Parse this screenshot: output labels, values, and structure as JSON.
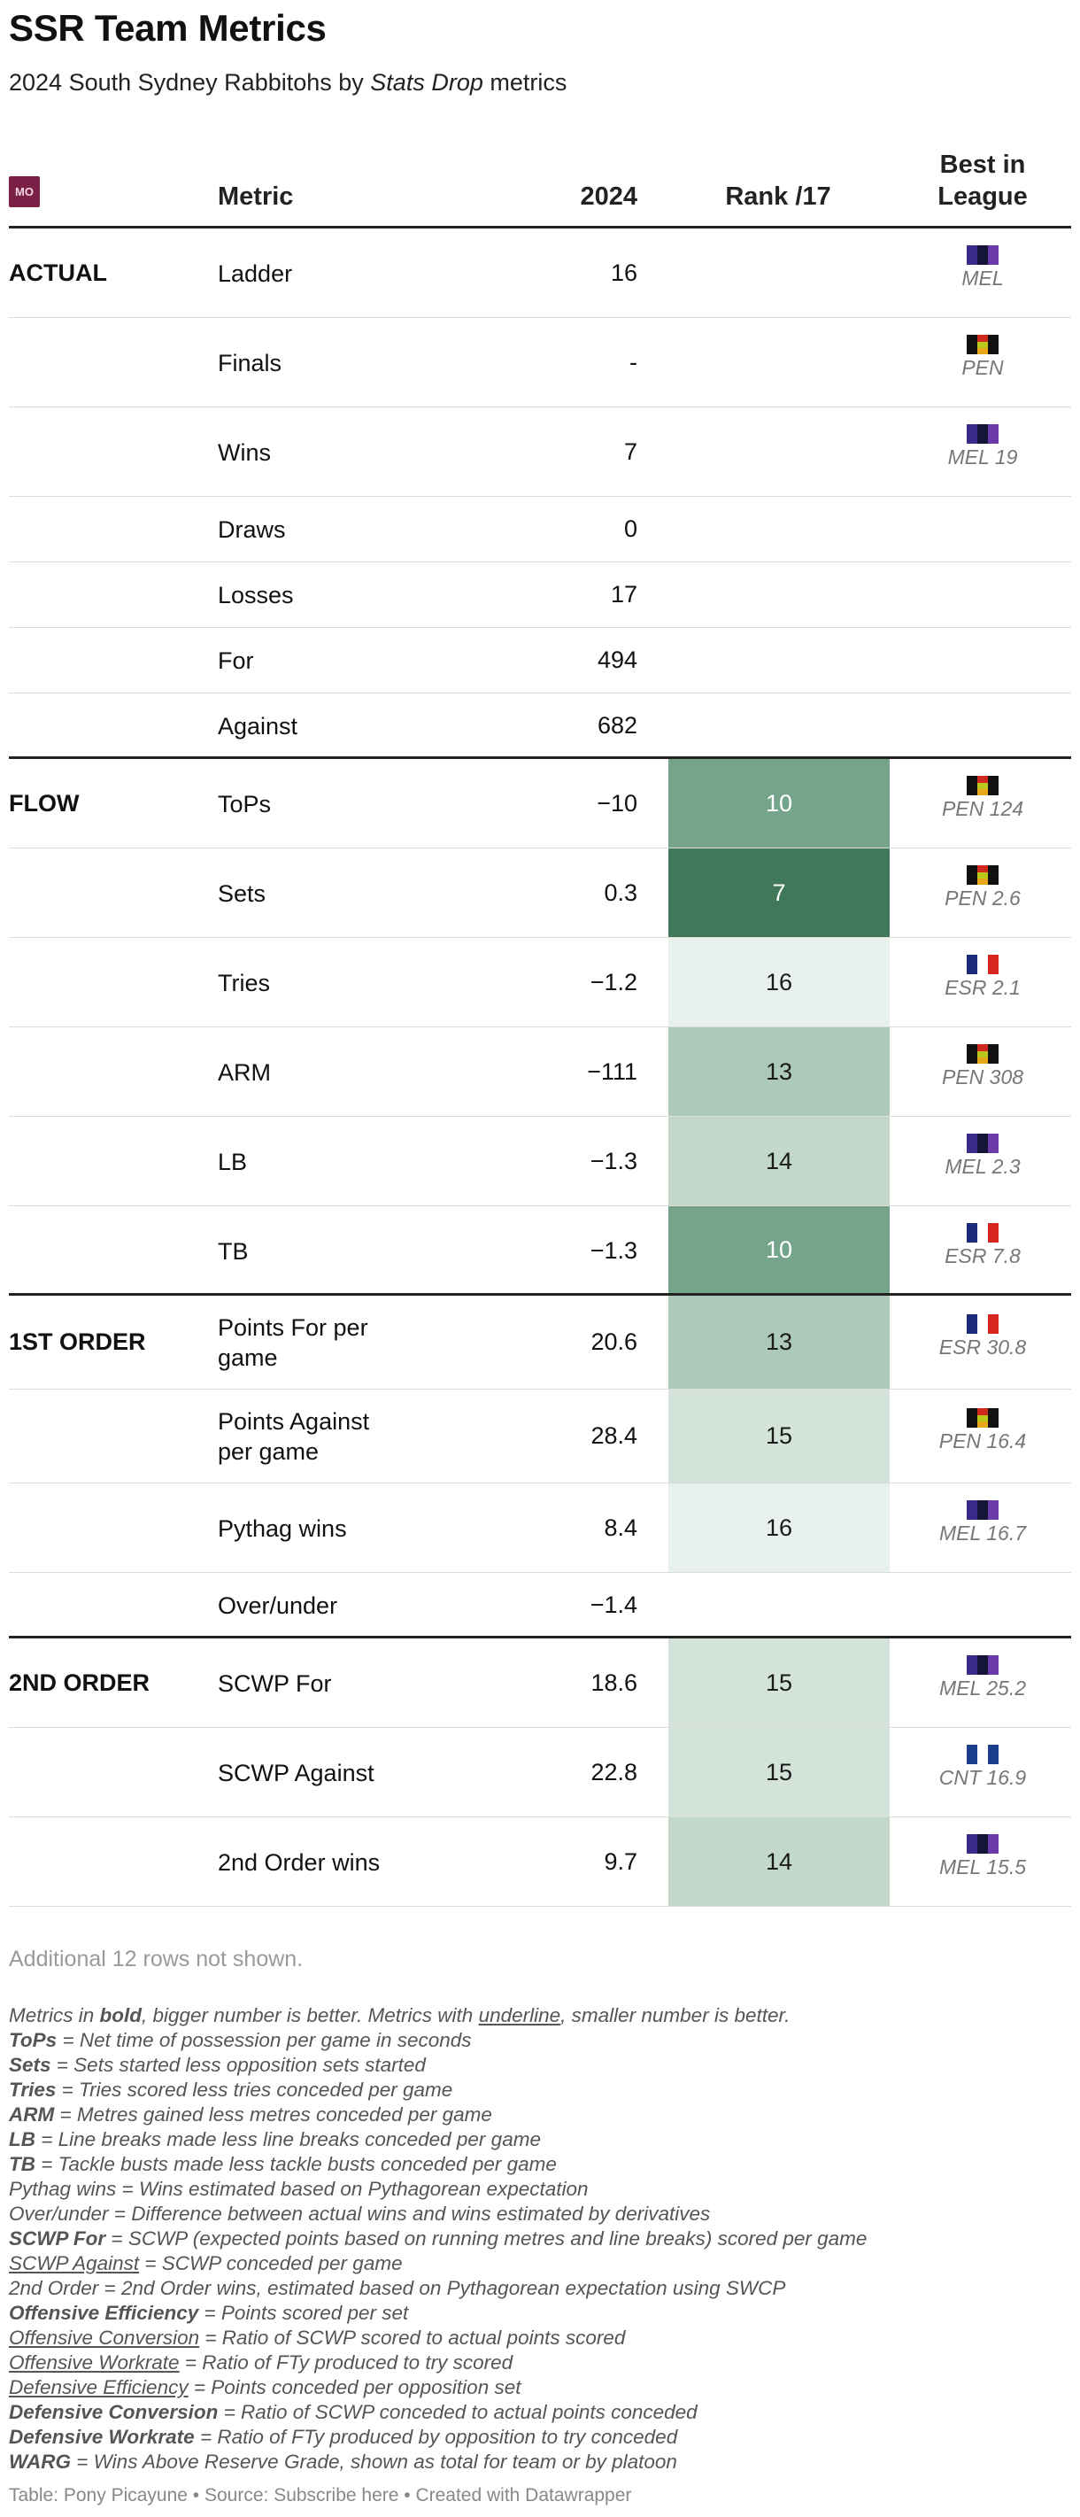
{
  "title": "SSR Team Metrics",
  "subtitle": {
    "prefix": "2024 South Sydney Rabbitohs by ",
    "em": "Stats Drop",
    "suffix": " metrics"
  },
  "header": {
    "logo": "MO",
    "metric": "Metric",
    "year": "2024",
    "rank": "Rank /17",
    "best_line1": "Best in",
    "best_line2": "League"
  },
  "colors": {
    "rank_7": "#41785a",
    "rank_10": "#76a48b",
    "rank_13": "#adc9b9",
    "rank_14": "#c2d8cb",
    "rank_15": "#d4e3da",
    "rank_16": "#e9f1ec"
  },
  "rows": [
    {
      "group": "ACTUAL",
      "metric": "Ladder",
      "value": "16",
      "rank": "",
      "best": "MEL",
      "flag": "mel"
    },
    {
      "group": "",
      "metric": "Finals",
      "value": "-",
      "rank": "",
      "best": "PEN",
      "flag": "pen"
    },
    {
      "group": "",
      "metric": "Wins",
      "value": "7",
      "rank": "",
      "best": "MEL 19",
      "flag": "mel"
    },
    {
      "group": "",
      "metric": "Draws",
      "value": "0",
      "rank": "",
      "best": "",
      "flag": ""
    },
    {
      "group": "",
      "metric": "Losses",
      "value": "17",
      "rank": "",
      "best": "",
      "flag": ""
    },
    {
      "group": "",
      "metric": "For",
      "value": "494",
      "rank": "",
      "best": "",
      "flag": ""
    },
    {
      "group": "",
      "metric": "Against",
      "value": "682",
      "rank": "",
      "best": "",
      "flag": ""
    },
    {
      "group": "FLOW",
      "metric": "ToPs",
      "value": "−10",
      "rank": "10",
      "best": "PEN 124",
      "flag": "pen"
    },
    {
      "group": "",
      "metric": "Sets",
      "value": "0.3",
      "rank": "7",
      "best": "PEN 2.6",
      "flag": "pen"
    },
    {
      "group": "",
      "metric": "Tries",
      "value": "−1.2",
      "rank": "16",
      "best": "ESR 2.1",
      "flag": "esr"
    },
    {
      "group": "",
      "metric": "ARM",
      "value": "−111",
      "rank": "13",
      "best": "PEN 308",
      "flag": "pen"
    },
    {
      "group": "",
      "metric": "LB",
      "value": "−1.3",
      "rank": "14",
      "best": "MEL 2.3",
      "flag": "mel"
    },
    {
      "group": "",
      "metric": "TB",
      "value": "−1.3",
      "rank": "10",
      "best": "ESR 7.8",
      "flag": "esr"
    },
    {
      "group": "1ST ORDER",
      "metric_line1": "Points For per",
      "metric_line2": "game",
      "value": "20.6",
      "rank": "13",
      "best": "ESR 30.8",
      "flag": "esr"
    },
    {
      "group": "",
      "metric_line1": "Points Against",
      "metric_line2": "per game",
      "value": "28.4",
      "rank": "15",
      "best": "PEN 16.4",
      "flag": "pen"
    },
    {
      "group": "",
      "metric": "Pythag wins",
      "value": "8.4",
      "rank": "16",
      "best": "MEL 16.7",
      "flag": "mel"
    },
    {
      "group": "",
      "metric": "Over/under",
      "value": "−1.4",
      "rank": "",
      "best": "",
      "flag": ""
    },
    {
      "group": "2ND ORDER",
      "metric": "SCWP For",
      "value": "18.6",
      "rank": "15",
      "best": "MEL 25.2",
      "flag": "mel"
    },
    {
      "group": "",
      "metric": "SCWP Against",
      "value": "22.8",
      "rank": "15",
      "best": "CNT 16.9",
      "flag": "cnt"
    },
    {
      "group": "",
      "metric": "2nd Order wins",
      "value": "9.7",
      "rank": "14",
      "best": "MEL 15.5",
      "flag": "mel"
    }
  ],
  "more_rows": "Additional 12 rows not shown.",
  "notes": [
    {
      "pre": "Metrics in ",
      "b": "bold",
      "mid": ", bigger number is better. Metrics with ",
      "u": "underline",
      "post": ", smaller number is better."
    },
    {
      "b": "ToPs",
      "post": " = Net time of possession per game in seconds"
    },
    {
      "b": "Sets",
      "post": " = Sets started less opposition sets started"
    },
    {
      "b": "Tries",
      "post": " = Tries scored less tries conceded per game"
    },
    {
      "b": "ARM",
      "post": " = Metres gained less metres conceded per game"
    },
    {
      "b": "LB",
      "post": " = Line breaks made less line breaks conceded per game"
    },
    {
      "b": "TB",
      "post": " = Tackle busts made less tackle busts conceded per game"
    },
    {
      "pre": "Pythag wins = Wins estimated based on Pythagorean expectation"
    },
    {
      "pre": "Over/under = Difference between actual wins and wins estimated by derivatives"
    },
    {
      "b": "SCWP For",
      "post": " = SCWP (expected points based on running metres and line breaks) scored per game"
    },
    {
      "u": "SCWP Against",
      "post": " = SCWP conceded per game"
    },
    {
      "pre": "2nd Order = 2nd Order wins, estimated based on Pythagorean expectation using SWCP"
    },
    {
      "b": "Offensive Efficiency",
      "post": " = Points scored per set"
    },
    {
      "u": "Offensive Conversion",
      "post": " = Ratio of SCWP scored to actual points scored"
    },
    {
      "u": "Offensive Workrate",
      "post": " = Ratio of FTy produced to try scored"
    },
    {
      "u": "Defensive Efficiency",
      "post": " = Points conceded per opposition set"
    },
    {
      "b": "Defensive Conversion",
      "post": " = Ratio of SCWP conceded to actual points conceded"
    },
    {
      "b": "Defensive Workrate",
      "post": " = Ratio of FTy produced by opposition to try conceded"
    },
    {
      "b": "WARG",
      "post": " = Wins Above Reserve Grade, shown as total for team or by platoon"
    }
  ],
  "footer": "Table: Pony Picayune • Source: Subscribe here • Created with Datawrapper"
}
